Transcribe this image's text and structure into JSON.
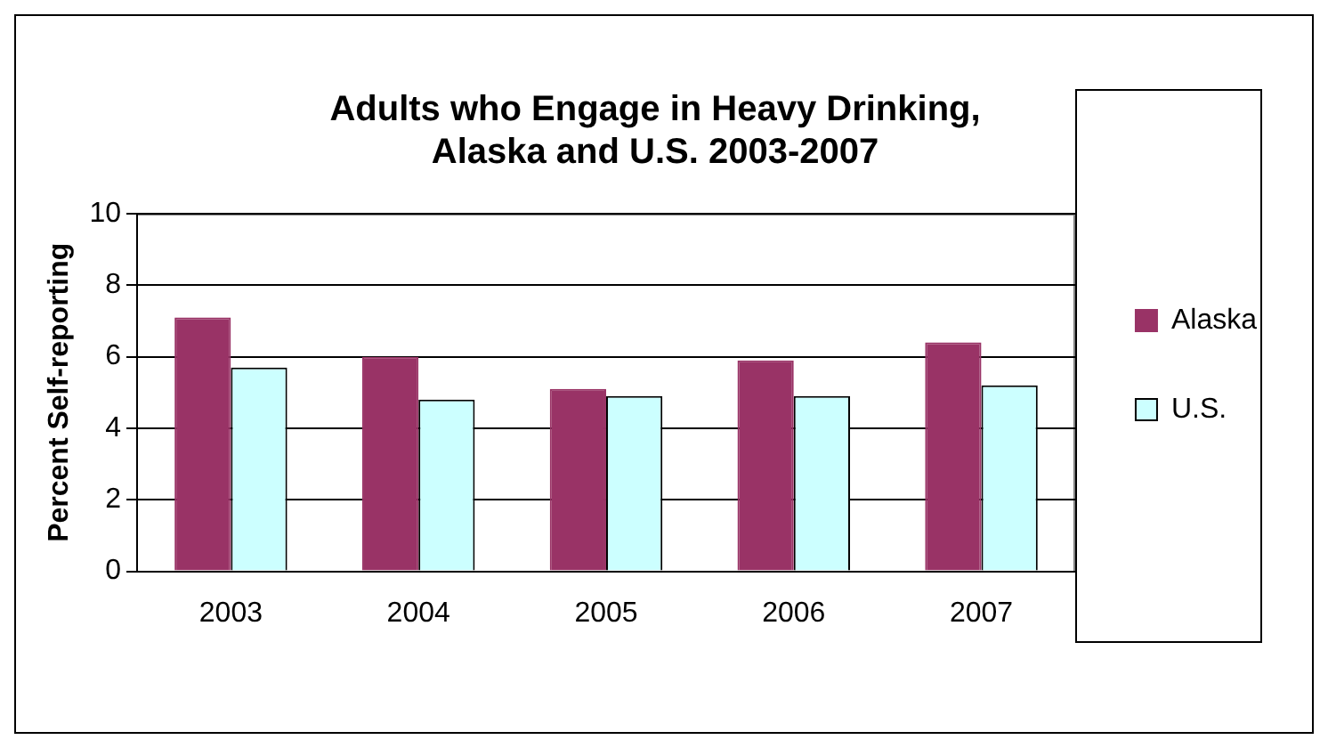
{
  "chart_data": {
    "type": "bar",
    "title": "Adults who Engage in Heavy Drinking, Alaska and U.S. 2003-2007",
    "ylabel": "Percent Self-reporting",
    "categories": [
      "2003",
      "2004",
      "2005",
      "2006",
      "2007"
    ],
    "series": [
      {
        "name": "Alaska",
        "color": "#993366",
        "values": [
          7.1,
          6.0,
          5.1,
          5.9,
          6.4
        ]
      },
      {
        "name": "U.S.",
        "color": "#ccffff",
        "values": [
          5.7,
          4.8,
          4.9,
          4.9,
          5.2
        ]
      }
    ],
    "ylim": [
      0,
      10
    ],
    "yticks": [
      0,
      2,
      4,
      6,
      8,
      10
    ],
    "grid": "y",
    "legend": "right"
  }
}
